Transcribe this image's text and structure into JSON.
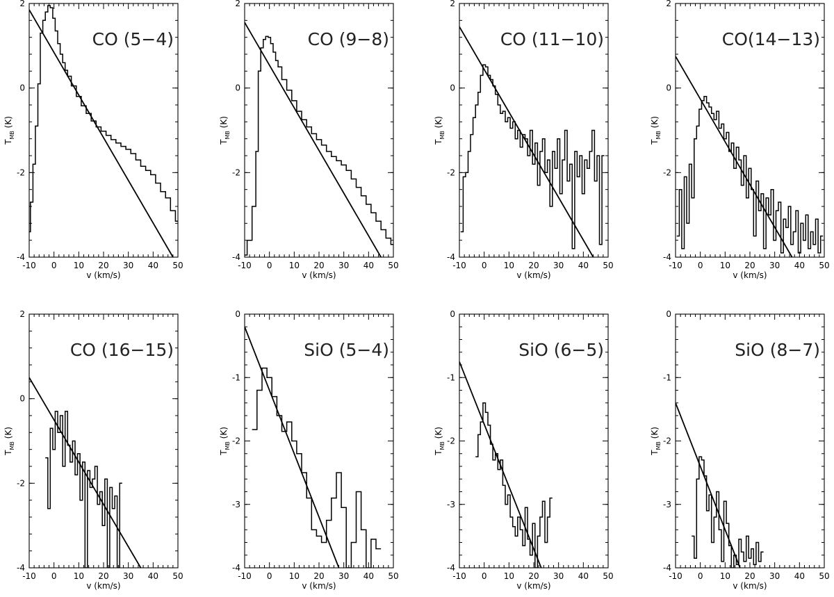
{
  "chart_data": [
    {
      "type": "line",
      "title": "CO (5−4)",
      "xlabel": "v (km/s)",
      "ylabel": "T",
      "ylabel_sub": "MB",
      "ylabel_unit": "(K)",
      "xlim": [
        -10,
        50
      ],
      "ylim": [
        -4,
        2
      ],
      "xticks": [
        -10,
        0,
        10,
        20,
        30,
        40,
        50
      ],
      "yticks": [
        -4,
        -2,
        0,
        2
      ],
      "series": [
        {
          "role": "spectrum",
          "x": [
            -10,
            -9,
            -8,
            -7,
            -6,
            -5,
            -4,
            -3,
            -2,
            -1,
            0,
            1,
            2,
            3,
            4,
            5,
            6,
            8,
            10,
            12,
            14,
            16,
            18,
            20,
            22,
            24,
            26,
            28,
            30,
            32,
            34,
            36,
            38,
            40,
            42,
            44,
            46,
            48,
            50
          ],
          "y": [
            -3.4,
            -2.7,
            -1.8,
            -0.9,
            0.1,
            1.3,
            1.6,
            1.8,
            1.95,
            1.9,
            1.65,
            1.35,
            1.05,
            0.8,
            0.6,
            0.42,
            0.28,
            0.05,
            -0.2,
            -0.42,
            -0.6,
            -0.78,
            -0.92,
            -1.02,
            -1.12,
            -1.22,
            -1.3,
            -1.38,
            -1.45,
            -1.55,
            -1.7,
            -1.85,
            -1.95,
            -2.05,
            -2.25,
            -2.45,
            -2.6,
            -2.9,
            -3.15
          ]
        },
        {
          "role": "fit",
          "x": [
            -10,
            48
          ],
          "y": [
            1.85,
            -4.0
          ]
        }
      ]
    },
    {
      "type": "line",
      "title": "CO (9−8)",
      "xlabel": "v (km/s)",
      "ylabel": "T",
      "ylabel_sub": "MB",
      "ylabel_unit": "(K)",
      "xlim": [
        -10,
        50
      ],
      "ylim": [
        -4,
        2
      ],
      "xticks": [
        -10,
        0,
        10,
        20,
        30,
        40,
        50
      ],
      "yticks": [
        -4,
        -2,
        0,
        2
      ],
      "series": [
        {
          "role": "spectrum",
          "x": [
            -10,
            -8,
            -6,
            -5,
            -4,
            -3,
            -2,
            -1,
            0,
            1,
            2,
            3,
            4,
            6,
            8,
            10,
            12,
            14,
            16,
            18,
            20,
            22,
            24,
            26,
            28,
            30,
            32,
            34,
            36,
            38,
            40,
            42,
            44,
            46,
            48,
            50
          ],
          "y": [
            -3.95,
            -3.6,
            -2.8,
            -1.5,
            0.4,
            0.95,
            1.15,
            1.22,
            1.2,
            1.05,
            0.85,
            0.65,
            0.5,
            0.2,
            -0.05,
            -0.3,
            -0.55,
            -0.75,
            -0.92,
            -1.08,
            -1.22,
            -1.35,
            -1.5,
            -1.62,
            -1.72,
            -1.82,
            -1.95,
            -2.15,
            -2.35,
            -2.55,
            -2.75,
            -2.95,
            -3.15,
            -3.35,
            -3.55,
            -3.7
          ]
        },
        {
          "role": "fit",
          "x": [
            -10,
            45
          ],
          "y": [
            1.55,
            -4.0
          ]
        }
      ]
    },
    {
      "type": "line",
      "title": "CO (11−10)",
      "xlabel": "v (km/s)",
      "ylabel": "T",
      "ylabel_sub": "MB",
      "ylabel_unit": "(K)",
      "xlim": [
        -10,
        50
      ],
      "ylim": [
        -4,
        2
      ],
      "xticks": [
        -10,
        0,
        10,
        20,
        30,
        40,
        50
      ],
      "yticks": [
        -4,
        -2,
        0,
        2
      ],
      "series": [
        {
          "role": "spectrum",
          "x": [
            -9,
            -8,
            -7,
            -6,
            -5,
            -4,
            -3,
            -2,
            -1,
            0,
            1,
            2,
            3,
            4,
            5,
            6,
            7,
            8,
            9,
            10,
            11,
            12,
            13,
            14,
            15,
            16,
            17,
            18,
            19,
            20,
            21,
            22,
            23,
            24,
            25,
            26,
            27,
            28,
            29,
            30,
            31,
            32,
            33,
            34,
            35,
            36,
            37,
            38,
            39,
            40,
            41,
            42,
            43,
            44,
            45,
            46,
            47,
            48
          ],
          "y": [
            -3.4,
            -2.1,
            -2.0,
            -1.5,
            -1.1,
            -0.7,
            -0.4,
            -0.1,
            0.3,
            0.55,
            0.5,
            0.3,
            0.2,
            0.05,
            -0.15,
            -0.4,
            -0.6,
            -0.55,
            -0.8,
            -0.7,
            -0.95,
            -0.8,
            -1.2,
            -1.0,
            -1.4,
            -1.1,
            -1.2,
            -1.6,
            -1.0,
            -1.8,
            -1.3,
            -2.3,
            -1.5,
            -1.2,
            -2.0,
            -1.7,
            -2.8,
            -1.5,
            -1.9,
            -1.2,
            -2.5,
            -1.7,
            -1.0,
            -2.2,
            -1.8,
            -3.8,
            -1.5,
            -2.1,
            -1.6,
            -2.5,
            -1.7,
            -1.9,
            -1.5,
            -1.0,
            -2.2,
            -1.6,
            -3.7,
            -1.6
          ]
        },
        {
          "role": "fit",
          "x": [
            -10,
            44
          ],
          "y": [
            1.45,
            -4.0
          ]
        }
      ]
    },
    {
      "type": "line",
      "title": "CO(14−13)",
      "xlabel": "v (km/s)",
      "ylabel": "T",
      "ylabel_sub": "MB",
      "ylabel_unit": "(K)",
      "xlim": [
        -10,
        50
      ],
      "ylim": [
        -4,
        2
      ],
      "xticks": [
        -10,
        0,
        10,
        20,
        30,
        40,
        50
      ],
      "yticks": [
        -4,
        -2,
        0,
        2
      ],
      "series": [
        {
          "role": "spectrum",
          "x": [
            -9,
            -8,
            -7,
            -6,
            -5,
            -4,
            -3,
            -2,
            -1,
            0,
            1,
            2,
            3,
            4,
            5,
            6,
            7,
            8,
            9,
            10,
            11,
            12,
            13,
            14,
            15,
            16,
            17,
            18,
            19,
            20,
            21,
            22,
            23,
            24,
            25,
            26,
            27,
            28,
            29,
            30,
            31,
            32,
            33,
            34,
            35,
            36,
            37,
            38,
            39,
            40,
            41,
            42,
            43,
            44,
            45,
            46,
            47,
            48,
            49
          ],
          "y": [
            -3.5,
            -2.4,
            -3.8,
            -2.1,
            -3.2,
            -1.8,
            -2.6,
            -1.2,
            -0.9,
            -0.5,
            -0.3,
            -0.2,
            -0.35,
            -0.45,
            -0.6,
            -0.75,
            -0.55,
            -0.95,
            -0.85,
            -1.2,
            -1.05,
            -1.5,
            -1.3,
            -1.9,
            -1.4,
            -1.7,
            -2.3,
            -1.6,
            -2.6,
            -1.9,
            -2.4,
            -3.5,
            -2.2,
            -2.9,
            -2.5,
            -3.8,
            -2.6,
            -3.0,
            -2.4,
            -3.6,
            -2.9,
            -2.7,
            -3.9,
            -3.1,
            -3.3,
            -2.8,
            -3.7,
            -3.4,
            -2.9,
            -3.9,
            -3.2,
            -3.6,
            -3.0,
            -3.8,
            -3.4,
            -3.7,
            -3.1,
            -3.9,
            -3.5
          ]
        },
        {
          "role": "fit",
          "x": [
            -10,
            37
          ],
          "y": [
            0.75,
            -4.0
          ]
        }
      ]
    },
    {
      "type": "line",
      "title": "CO (16−15)",
      "xlabel": "v (km/s)",
      "ylabel": "T",
      "ylabel_sub": "MB",
      "ylabel_unit": "(K)",
      "xlim": [
        -10,
        50
      ],
      "ylim": [
        -4,
        2
      ],
      "xticks": [
        -10,
        0,
        10,
        20,
        30,
        40,
        50
      ],
      "yticks": [
        -4,
        -2,
        0,
        2
      ],
      "series": [
        {
          "role": "spectrum",
          "x": [
            -3,
            -2,
            -1,
            0,
            1,
            2,
            3,
            4,
            5,
            6,
            7,
            8,
            9,
            10,
            11,
            12,
            13,
            14,
            15,
            16,
            17,
            18,
            19,
            20,
            21,
            22,
            23,
            24,
            25,
            26,
            27
          ],
          "y": [
            -1.4,
            -2.6,
            -0.7,
            -1.2,
            -0.3,
            -0.8,
            -0.4,
            -1.6,
            -0.3,
            -1.1,
            -1.5,
            -1.0,
            -1.8,
            -1.3,
            -2.4,
            -1.5,
            -4.0,
            -1.7,
            -2.1,
            -1.9,
            -1.6,
            -2.5,
            -2.2,
            -3.0,
            -1.9,
            -4.0,
            -2.1,
            -2.6,
            -2.3,
            -4.0,
            -2.0
          ]
        },
        {
          "role": "fit",
          "x": [
            -10,
            35
          ],
          "y": [
            0.5,
            -4.0
          ]
        }
      ]
    },
    {
      "type": "line",
      "title": "SiO (5−4)",
      "xlabel": "v (km/s)",
      "ylabel": "T",
      "ylabel_sub": "MB",
      "ylabel_unit": "(K)",
      "xlim": [
        -10,
        50
      ],
      "ylim": [
        -4,
        0
      ],
      "xticks": [
        -10,
        0,
        10,
        20,
        30,
        40,
        50
      ],
      "yticks": [
        -4,
        -3,
        -2,
        -1,
        0
      ],
      "series": [
        {
          "role": "spectrum",
          "x": [
            -6,
            -4,
            -2,
            0,
            2,
            4,
            6,
            8,
            10,
            12,
            14,
            16,
            18,
            20,
            22,
            24,
            26,
            28,
            30,
            32,
            34,
            36,
            38,
            40,
            42,
            44
          ],
          "y": [
            -1.82,
            -1.2,
            -0.85,
            -1.0,
            -1.3,
            -1.6,
            -1.85,
            -1.7,
            -2.0,
            -2.2,
            -2.5,
            -2.9,
            -3.4,
            -3.5,
            -3.6,
            -3.25,
            -2.9,
            -2.5,
            -3.05,
            -4.0,
            -3.6,
            -2.8,
            -3.4,
            -4.0,
            -3.55,
            -3.7
          ]
        },
        {
          "role": "fit",
          "x": [
            -10,
            28
          ],
          "y": [
            -0.2,
            -4.0
          ]
        }
      ]
    },
    {
      "type": "line",
      "title": "SiO (6−5)",
      "xlabel": "v (km/s)",
      "ylabel": "T",
      "ylabel_sub": "MB",
      "ylabel_unit": "(K)",
      "xlim": [
        -10,
        50
      ],
      "ylim": [
        -4,
        0
      ],
      "xticks": [
        -10,
        0,
        10,
        20,
        30,
        40,
        50
      ],
      "yticks": [
        -4,
        -3,
        -2,
        -1,
        0
      ],
      "series": [
        {
          "role": "spectrum",
          "x": [
            -3,
            -2,
            -1,
            0,
            1,
            2,
            3,
            4,
            5,
            6,
            7,
            8,
            9,
            10,
            11,
            12,
            13,
            14,
            15,
            16,
            17,
            18,
            19,
            20,
            21,
            22,
            23,
            24,
            25,
            26,
            27
          ],
          "y": [
            -2.25,
            -1.9,
            -1.7,
            -1.4,
            -1.55,
            -1.75,
            -2.05,
            -2.3,
            -2.2,
            -2.45,
            -2.3,
            -2.7,
            -3.0,
            -2.85,
            -3.2,
            -3.35,
            -3.5,
            -3.2,
            -3.4,
            -3.65,
            -3.05,
            -3.55,
            -3.8,
            -3.3,
            -4.0,
            -3.5,
            -3.2,
            -2.95,
            -3.6,
            -3.2,
            -2.9
          ]
        },
        {
          "role": "fit",
          "x": [
            -10,
            23
          ],
          "y": [
            -0.75,
            -4.0
          ]
        }
      ]
    },
    {
      "type": "line",
      "title": "SiO (8−7)",
      "xlabel": "v (km/s)",
      "ylabel": "T",
      "ylabel_sub": "MB",
      "ylabel_unit": "(K)",
      "xlim": [
        -10,
        50
      ],
      "ylim": [
        -4,
        0
      ],
      "xticks": [
        -10,
        0,
        10,
        20,
        30,
        40,
        50
      ],
      "yticks": [
        -4,
        -3,
        -2,
        -1,
        0
      ],
      "series": [
        {
          "role": "spectrum",
          "x": [
            -3,
            -2,
            -1,
            0,
            1,
            2,
            3,
            4,
            5,
            6,
            7,
            8,
            9,
            10,
            11,
            12,
            13,
            14,
            15,
            16,
            17,
            18,
            19,
            20,
            21,
            22,
            23,
            24,
            25
          ],
          "y": [
            -3.5,
            -3.85,
            -2.6,
            -2.25,
            -2.3,
            -2.55,
            -3.1,
            -2.85,
            -3.6,
            -3.2,
            -2.8,
            -3.4,
            -3.9,
            -2.95,
            -3.3,
            -3.65,
            -4.0,
            -3.8,
            -3.95,
            -3.55,
            -3.75,
            -3.9,
            -3.5,
            -3.85,
            -3.7,
            -3.95,
            -3.6,
            -3.9,
            -3.75
          ]
        },
        {
          "role": "fit",
          "x": [
            -10,
            16
          ],
          "y": [
            -1.4,
            -4.0
          ]
        }
      ]
    }
  ]
}
